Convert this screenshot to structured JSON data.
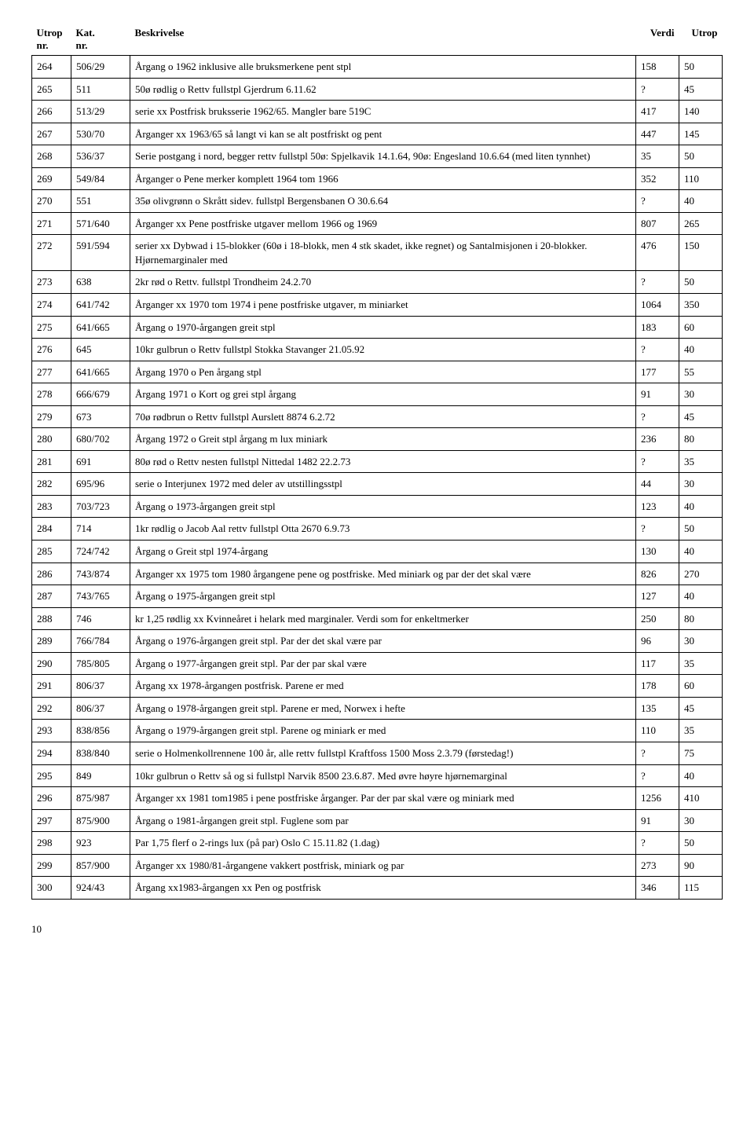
{
  "headers": {
    "utrop_nr": "Utrop\nnr.",
    "kat_nr": "Kat.\nnr.",
    "beskr": "Beskrivelse",
    "verdi": "Verdi",
    "utrop": "Utrop"
  },
  "rows": [
    {
      "n": "264",
      "k": "506/29",
      "b": "Årgang o 1962 inklusive alle bruksmerkene pent stpl",
      "v": "158",
      "u": "50"
    },
    {
      "n": "265",
      "k": "511",
      "b": "50ø rødlig o Rettv fullstpl Gjerdrum 6.11.62",
      "v": "?",
      "u": "45"
    },
    {
      "n": "266",
      "k": "513/29",
      "b": "serie xx Postfrisk bruksserie 1962/65. Mangler bare 519C",
      "v": "417",
      "u": "140"
    },
    {
      "n": "267",
      "k": "530/70",
      "b": "Årganger xx 1963/65 så langt vi kan se alt postfriskt og pent",
      "v": "447",
      "u": "145"
    },
    {
      "n": "268",
      "k": "536/37",
      "b": "Serie postgang i nord, begger rettv fullstpl 50ø: Spjelkavik 14.1.64, 90ø: Engesland 10.6.64 (med liten tynnhet)",
      "v": "35",
      "u": "50"
    },
    {
      "n": "269",
      "k": "549/84",
      "b": "Årganger o Pene merker komplett 1964 tom 1966",
      "v": "352",
      "u": "110"
    },
    {
      "n": "270",
      "k": "551",
      "b": "35ø olivgrønn o Skrått sidev. fullstpl Bergensbanen O 30.6.64",
      "v": "?",
      "u": "40"
    },
    {
      "n": "271",
      "k": "571/640",
      "b": "Årganger xx Pene postfriske utgaver mellom 1966 og 1969",
      "v": "807",
      "u": "265"
    },
    {
      "n": "272",
      "k": "591/594",
      "b": "serier xx Dybwad i 15-blokker (60ø i 18-blokk, men 4 stk skadet, ikke regnet) og Santalmisjonen i 20-blokker. Hjørnemarginaler med",
      "v": "476",
      "u": "150"
    },
    {
      "n": "273",
      "k": "638",
      "b": "2kr rød o Rettv. fullstpl Trondheim 24.2.70",
      "v": "?",
      "u": "50"
    },
    {
      "n": "274",
      "k": "641/742",
      "b": "Årganger xx 1970 tom 1974 i pene postfriske utgaver, m miniarket",
      "v": "1064",
      "u": "350"
    },
    {
      "n": "275",
      "k": "641/665",
      "b": "Årgang o 1970-årgangen greit stpl",
      "v": "183",
      "u": "60"
    },
    {
      "n": "276",
      "k": "645",
      "b": "10kr gulbrun o Rettv fullstpl Stokka Stavanger 21.05.92",
      "v": "?",
      "u": "40"
    },
    {
      "n": "277",
      "k": "641/665",
      "b": "Årgang 1970 o Pen årgang stpl",
      "v": "177",
      "u": "55"
    },
    {
      "n": "278",
      "k": "666/679",
      "b": "Årgang 1971 o Kort og grei stpl årgang",
      "v": "91",
      "u": "30"
    },
    {
      "n": "279",
      "k": "673",
      "b": "70ø rødbrun o Rettv fullstpl Aurslett 8874 6.2.72",
      "v": "?",
      "u": "45"
    },
    {
      "n": "280",
      "k": "680/702",
      "b": "Årgang 1972 o Greit stpl årgang m lux miniark",
      "v": "236",
      "u": "80"
    },
    {
      "n": "281",
      "k": "691",
      "b": "80ø rød o Rettv nesten fullstpl Nittedal 1482 22.2.73",
      "v": "?",
      "u": "35"
    },
    {
      "n": "282",
      "k": "695/96",
      "b": "serie o Interjunex 1972 med deler av utstillingsstpl",
      "v": "44",
      "u": "30"
    },
    {
      "n": "283",
      "k": "703/723",
      "b": "Årgang o 1973-årgangen greit stpl",
      "v": "123",
      "u": "40"
    },
    {
      "n": "284",
      "k": "714",
      "b": "1kr rødlig o Jacob Aal rettv fullstpl Otta 2670 6.9.73",
      "v": "?",
      "u": "50"
    },
    {
      "n": "285",
      "k": "724/742",
      "b": "Årgang o Greit stpl 1974-årgang",
      "v": "130",
      "u": "40"
    },
    {
      "n": "286",
      "k": "743/874",
      "b": "Årganger xx 1975 tom 1980 årgangene pene og postfriske. Med miniark og par der det skal være",
      "v": "826",
      "u": "270"
    },
    {
      "n": "287",
      "k": "743/765",
      "b": "Årgang o 1975-årgangen greit stpl",
      "v": "127",
      "u": "40"
    },
    {
      "n": "288",
      "k": "746",
      "b": "kr 1,25 rødlig xx Kvinneåret i helark med marginaler. Verdi som for enkeltmerker",
      "v": "250",
      "u": "80"
    },
    {
      "n": "289",
      "k": "766/784",
      "b": "Årgang o 1976-årgangen greit stpl. Par der det skal være par",
      "v": "96",
      "u": "30"
    },
    {
      "n": "290",
      "k": "785/805",
      "b": "Årgang o 1977-årgangen greit stpl. Par der par skal være",
      "v": "117",
      "u": "35"
    },
    {
      "n": "291",
      "k": "806/37",
      "b": "Årgang xx 1978-årgangen postfrisk. Parene er med",
      "v": "178",
      "u": "60"
    },
    {
      "n": "292",
      "k": "806/37",
      "b": "Årgang o 1978-årgangen greit stpl. Parene er med, Norwex i hefte",
      "v": "135",
      "u": "45"
    },
    {
      "n": "293",
      "k": "838/856",
      "b": "Årgang o 1979-årgangen greit stpl. Parene og miniark er med",
      "v": "110",
      "u": "35"
    },
    {
      "n": "294",
      "k": "838/840",
      "b": "serie o Holmenkollrennene 100 år, alle rettv fullstpl Kraftfoss 1500 Moss 2.3.79 (førstedag!)",
      "v": "?",
      "u": "75"
    },
    {
      "n": "295",
      "k": "849",
      "b": "10kr gulbrun o Rettv så og si fullstpl Narvik 8500 23.6.87. Med øvre høyre hjørnemarginal",
      "v": "?",
      "u": "40"
    },
    {
      "n": "296",
      "k": "875/987",
      "b": "Årganger xx 1981 tom1985 i pene postfriske årganger. Par der par skal være og miniark med",
      "v": "1256",
      "u": "410"
    },
    {
      "n": "297",
      "k": "875/900",
      "b": "Årgang o 1981-årgangen greit stpl. Fuglene som par",
      "v": "91",
      "u": "30"
    },
    {
      "n": "298",
      "k": "923",
      "b": "Par 1,75 flerf o 2-rings lux (på par) Oslo C 15.11.82 (1.dag)",
      "v": "?",
      "u": "50"
    },
    {
      "n": "299",
      "k": "857/900",
      "b": "Årganger xx 1980/81-årgangene vakkert postfrisk, miniark og par",
      "v": "273",
      "u": "90"
    },
    {
      "n": "300",
      "k": "924/43",
      "b": "Årgang xx1983-årgangen xx Pen og postfrisk",
      "v": "346",
      "u": "115"
    }
  ],
  "page_number": "10"
}
